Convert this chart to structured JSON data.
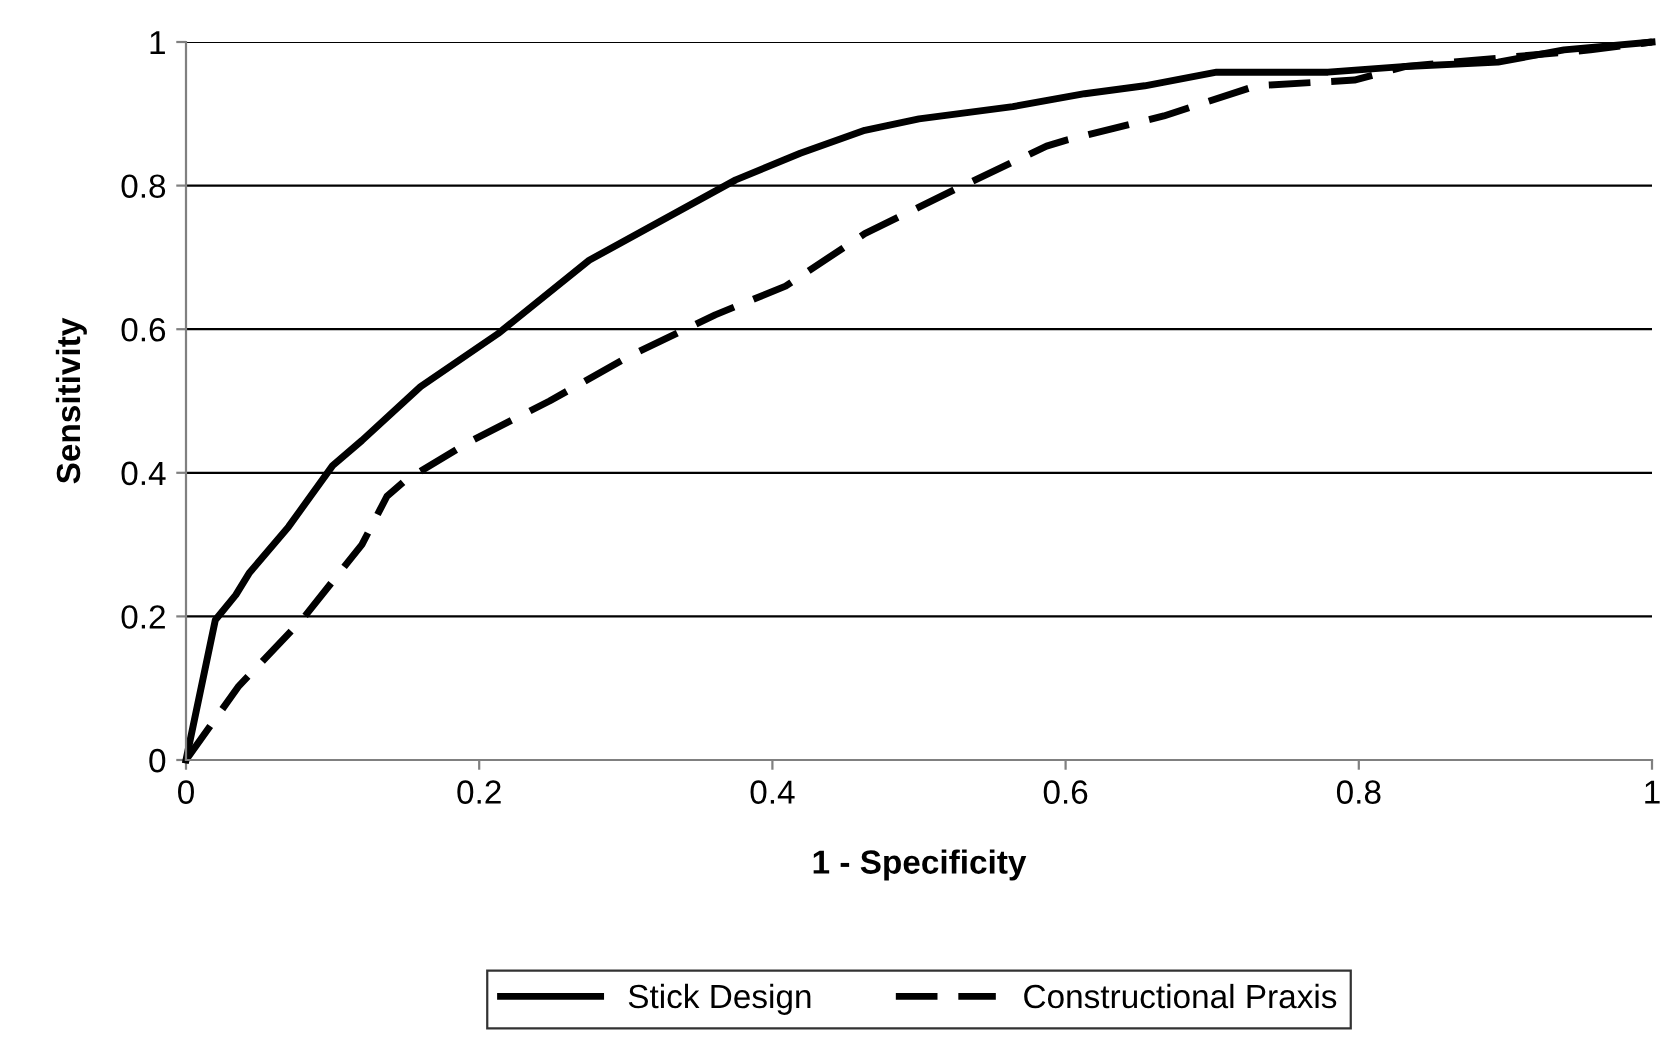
{
  "chart_data": {
    "type": "line",
    "xlabel": "1 - Specificity",
    "ylabel": "Sensitivity",
    "xlim": [
      0,
      1
    ],
    "ylim": [
      0,
      1
    ],
    "xticks": [
      0,
      0.2,
      0.4,
      0.6,
      0.8,
      1
    ],
    "yticks": [
      0,
      0.2,
      0.4,
      0.6,
      0.8,
      1
    ],
    "grid": "y",
    "legend": "bottom",
    "marker": "none",
    "series": [
      {
        "name": "Stick Design",
        "color": "#000000",
        "line_style": "solid",
        "x": [
          0,
          0.02,
          0.034,
          0.043,
          0.07,
          0.1,
          0.12,
          0.16,
          0.213,
          0.275,
          0.375,
          0.419,
          0.463,
          0.5,
          0.564,
          0.613,
          0.654,
          0.703,
          0.779,
          0.832,
          0.895,
          0.94,
          1
        ],
        "values": [
          0,
          0.195,
          0.23,
          0.26,
          0.325,
          0.41,
          0.445,
          0.52,
          0.594,
          0.696,
          0.808,
          0.845,
          0.877,
          0.893,
          0.91,
          0.928,
          0.939,
          0.958,
          0.958,
          0.966,
          0.972,
          0.989,
          1
        ]
      },
      {
        "name": "Constructional Praxis",
        "color": "#000000",
        "line_style": "dashed",
        "x": [
          0,
          0.036,
          0.079,
          0.12,
          0.137,
          0.15,
          0.195,
          0.248,
          0.302,
          0.361,
          0.409,
          0.463,
          0.5,
          0.524,
          0.587,
          0.6,
          0.667,
          0.73,
          0.797,
          0.832,
          0.958,
          1
        ],
        "values": [
          0,
          0.103,
          0.195,
          0.3,
          0.367,
          0.39,
          0.445,
          0.5,
          0.562,
          0.62,
          0.66,
          0.733,
          0.77,
          0.794,
          0.855,
          0.863,
          0.897,
          0.939,
          0.947,
          0.966,
          0.989,
          1
        ]
      }
    ]
  }
}
